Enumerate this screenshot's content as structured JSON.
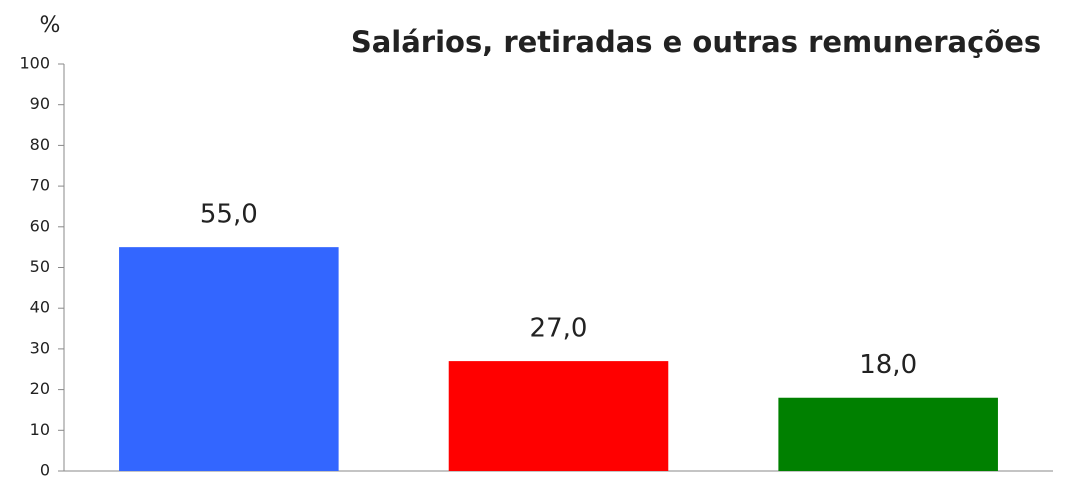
{
  "chart_data": {
    "type": "bar",
    "title": "Salários, retiradas e outras remunerações",
    "ylabel": "%",
    "categories": [
      null,
      null,
      null
    ],
    "values": [
      55,
      27,
      18
    ],
    "value_labels": [
      "55,0",
      "27,0",
      "18,0"
    ],
    "colors": [
      "#3366ff",
      "#ff0000",
      "#008000"
    ],
    "ylim": [
      0,
      100
    ],
    "yticks": [
      0,
      10,
      20,
      30,
      40,
      50,
      60,
      70,
      80,
      90,
      100
    ],
    "grid": false
  }
}
